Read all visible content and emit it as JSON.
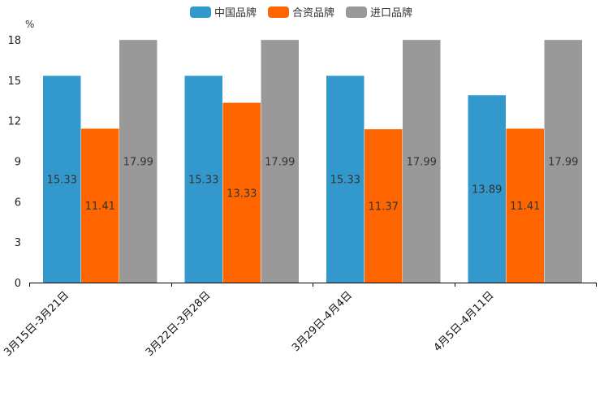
{
  "chart_data": {
    "type": "bar",
    "title": "",
    "xlabel": "",
    "ylabel": "%",
    "ylim": [
      0,
      18
    ],
    "yticks": [
      0,
      3,
      6,
      9,
      12,
      15,
      18
    ],
    "categories": [
      "3月15日-3月21日",
      "3月22日-3月28日",
      "3月29日-4月4日",
      "4月5日-4月11日"
    ],
    "series": [
      {
        "name": "中国品牌",
        "color": "#3399cc",
        "values": [
          15.33,
          15.33,
          15.33,
          13.89
        ]
      },
      {
        "name": "合资品牌",
        "color": "#ff6600",
        "values": [
          11.41,
          13.33,
          11.37,
          11.41
        ]
      },
      {
        "name": "进口品牌",
        "color": "#999999",
        "values": [
          17.99,
          17.99,
          17.99,
          17.99
        ]
      }
    ],
    "legend_position": "top-center",
    "grid": false
  }
}
